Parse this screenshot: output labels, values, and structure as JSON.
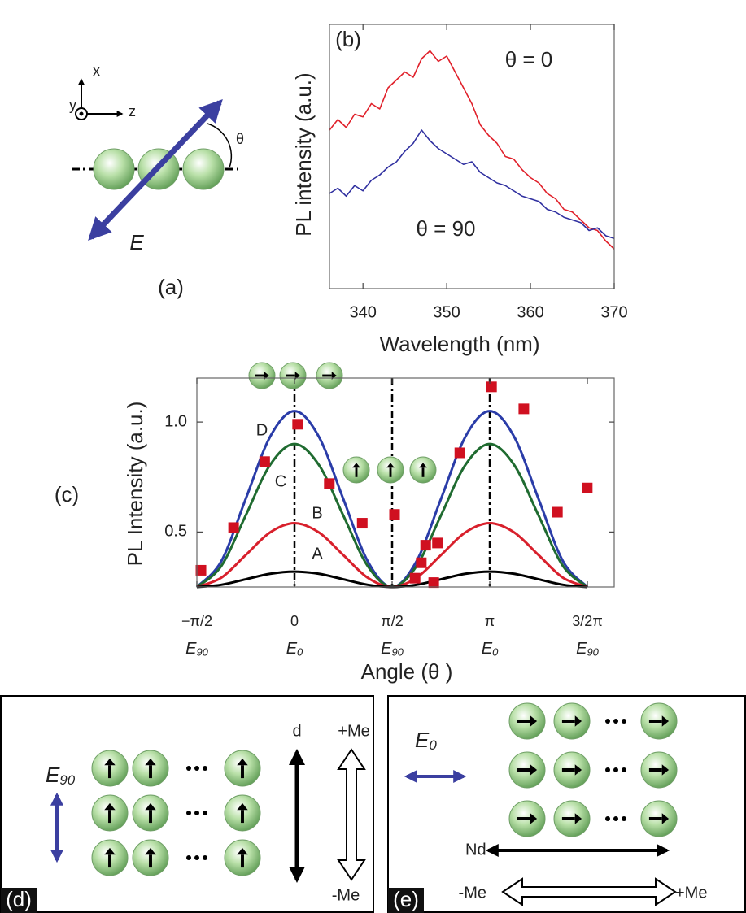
{
  "chart_data": [
    {
      "type": "line",
      "label": "(b)",
      "x_label": "Wavelength (nm)",
      "y_label": "PL intensity (a.u.)",
      "x": [
        336,
        337,
        338,
        339,
        340,
        341,
        342,
        343,
        344,
        345,
        346,
        347,
        348,
        349,
        350,
        351,
        352,
        353,
        354,
        355,
        356,
        357,
        358,
        359,
        360,
        361,
        362,
        363,
        364,
        365,
        366,
        367,
        368,
        369,
        370
      ],
      "series": [
        {
          "color": "#e0202a",
          "values": [
            0.6,
            0.64,
            0.61,
            0.66,
            0.65,
            0.7,
            0.68,
            0.76,
            0.79,
            0.82,
            0.8,
            0.87,
            0.9,
            0.86,
            0.88,
            0.82,
            0.76,
            0.7,
            0.62,
            0.58,
            0.55,
            0.5,
            0.49,
            0.45,
            0.42,
            0.4,
            0.36,
            0.34,
            0.3,
            0.29,
            0.26,
            0.23,
            0.22,
            0.18,
            0.15
          ]
        },
        {
          "color": "#3030a0",
          "values": [
            0.36,
            0.38,
            0.35,
            0.39,
            0.37,
            0.41,
            0.43,
            0.46,
            0.48,
            0.52,
            0.55,
            0.6,
            0.56,
            0.53,
            0.51,
            0.49,
            0.47,
            0.48,
            0.44,
            0.42,
            0.4,
            0.39,
            0.37,
            0.35,
            0.34,
            0.33,
            0.3,
            0.29,
            0.27,
            0.26,
            0.25,
            0.22,
            0.23,
            0.2,
            0.19
          ]
        }
      ],
      "annotations": [
        "θ = 0",
        "θ = 90"
      ],
      "xlim": [
        336,
        370
      ],
      "ylim": [
        0,
        1
      ],
      "xticks": [
        340,
        350,
        360,
        370
      ]
    },
    {
      "type": "line",
      "label": "(c)",
      "x_label": "Angle (θ )",
      "y_label": "PL Intensity (a.u.)",
      "x": [
        -1.5708,
        -1.1781,
        -0.7854,
        -0.3927,
        0,
        0.3927,
        0.7854,
        1.1781,
        1.5708,
        1.9635,
        2.3562,
        2.7489,
        3.1416,
        3.5343,
        3.927,
        4.3197,
        4.7124
      ],
      "series": [
        {
          "name": "D",
          "color": "#2a3ca8",
          "values": [
            0.25,
            0.367,
            0.65,
            0.933,
            1.05,
            0.933,
            0.65,
            0.367,
            0.25,
            0.367,
            0.65,
            0.933,
            1.05,
            0.933,
            0.65,
            0.367,
            0.25
          ]
        },
        {
          "name": "C",
          "color": "#1f6b30",
          "values": [
            0.25,
            0.345,
            0.575,
            0.805,
            0.9,
            0.805,
            0.575,
            0.345,
            0.25,
            0.345,
            0.575,
            0.805,
            0.9,
            0.805,
            0.575,
            0.345,
            0.25
          ]
        },
        {
          "name": "B",
          "color": "#d8202c",
          "values": [
            0.25,
            0.292,
            0.395,
            0.498,
            0.54,
            0.498,
            0.395,
            0.292,
            0.25,
            0.292,
            0.395,
            0.498,
            0.54,
            0.498,
            0.395,
            0.292,
            0.25
          ]
        },
        {
          "name": "A",
          "color": "#000000",
          "values": [
            0.25,
            0.26,
            0.285,
            0.31,
            0.32,
            0.31,
            0.285,
            0.26,
            0.25,
            0.26,
            0.285,
            0.31,
            0.32,
            0.31,
            0.285,
            0.26,
            0.25
          ]
        }
      ],
      "points": {
        "color": "#d01020",
        "x": [
          -1.505,
          -0.98,
          -0.48,
          0.05,
          0.56,
          1.09,
          1.61,
          1.94,
          2.04,
          2.11,
          2.3,
          2.24,
          2.66,
          3.17,
          3.69,
          4.23,
          4.71
        ],
        "y": [
          0.326,
          0.52,
          0.82,
          0.99,
          0.72,
          0.54,
          0.58,
          0.29,
          0.36,
          0.44,
          0.45,
          0.27,
          0.86,
          1.16,
          1.06,
          0.59,
          0.7
        ]
      },
      "xlim": [
        -1.5708,
        5.144
      ],
      "ylim": [
        0.25,
        1.2
      ],
      "xticks": [
        {
          "value": -1.5708,
          "label": "−π/2"
        },
        0,
        {
          "value": 1.5708,
          "label": "π/2"
        },
        {
          "value": 3.1416,
          "label": "π"
        },
        {
          "value": 4.7124,
          "label": "3/2π"
        }
      ],
      "xtick_sublabels": [
        "E90",
        "E0",
        "E90",
        "E0",
        "E90"
      ],
      "yticks": [
        0.5,
        {
          "value": 1,
          "label": "1.0"
        }
      ]
    }
  ],
  "panel_a": {
    "label": "(a)",
    "axis_x": "x",
    "axis_y": "y",
    "axis_z": "z",
    "angle": "θ",
    "field": "E"
  },
  "panel_d": {
    "label": "(d)",
    "field": "E90",
    "dipole": "d",
    "plus": "+Me",
    "minus": "-Me"
  },
  "panel_e": {
    "label": "(e)",
    "field": "E0",
    "dipole": "Nd",
    "minus": "-Me",
    "plus": "+Me"
  }
}
